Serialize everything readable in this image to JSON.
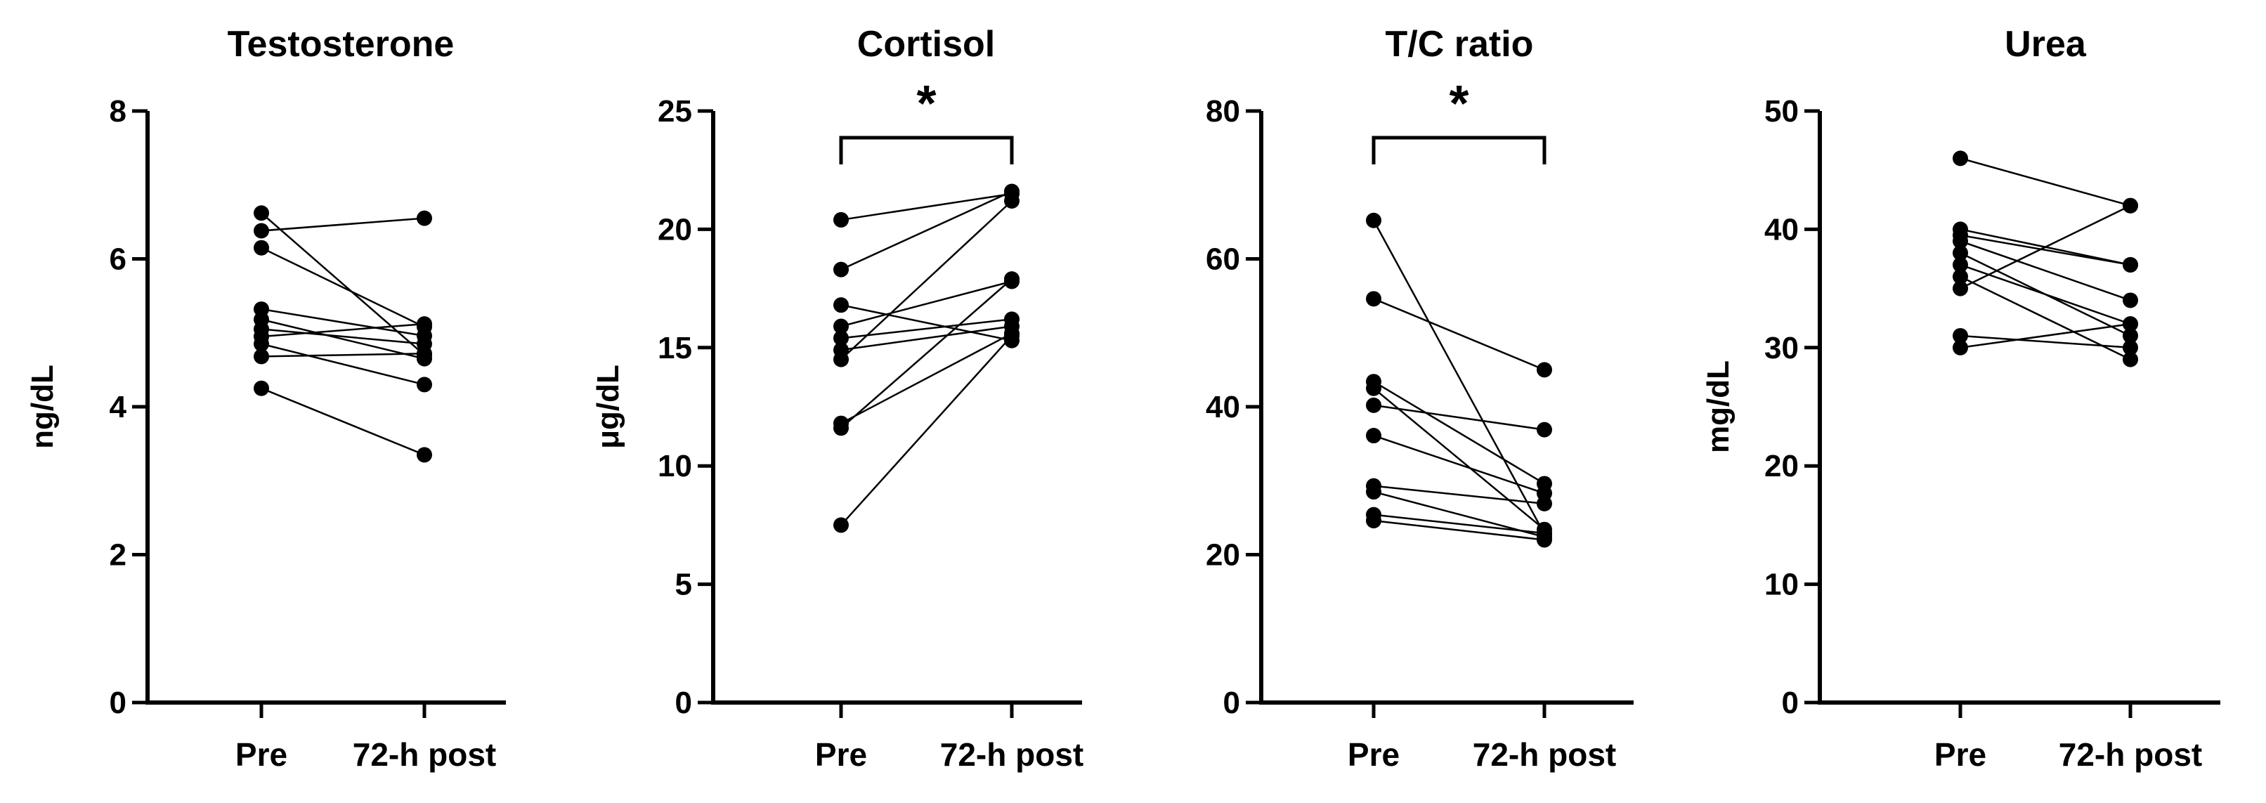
{
  "chart_data": [
    {
      "type": "line",
      "title": "Testosterone",
      "ylabel": "ng/dL",
      "categories": [
        "Pre",
        "72-h post"
      ],
      "ylim": [
        0,
        8
      ],
      "yticks": [
        0,
        2,
        4,
        6,
        8
      ],
      "significance": null,
      "pairs": [
        [
          6.62,
          4.7
        ],
        [
          6.38,
          6.55
        ],
        [
          6.15,
          5.08
        ],
        [
          5.32,
          4.96
        ],
        [
          5.18,
          4.65
        ],
        [
          5.05,
          4.85
        ],
        [
          4.95,
          5.12
        ],
        [
          4.85,
          4.3
        ],
        [
          4.68,
          4.72
        ],
        [
          4.25,
          3.35
        ]
      ]
    },
    {
      "type": "line",
      "title": "Cortisol",
      "ylabel": "μg/dL",
      "categories": [
        "Pre",
        "72-h post"
      ],
      "ylim": [
        0,
        25
      ],
      "yticks": [
        0,
        5,
        10,
        15,
        20,
        25
      ],
      "significance": "*",
      "pairs": [
        [
          20.4,
          21.5
        ],
        [
          18.3,
          21.6
        ],
        [
          16.8,
          15.3
        ],
        [
          15.9,
          17.8
        ],
        [
          15.4,
          16.2
        ],
        [
          14.9,
          15.9
        ],
        [
          14.5,
          21.2
        ],
        [
          11.8,
          15.6
        ],
        [
          11.6,
          17.9
        ],
        [
          7.5,
          15.5
        ]
      ]
    },
    {
      "type": "line",
      "title": "T/C ratio",
      "ylabel": "",
      "categories": [
        "Pre",
        "72-h post"
      ],
      "ylim": [
        0,
        80
      ],
      "yticks": [
        0,
        20,
        40,
        60,
        80
      ],
      "significance": "*",
      "pairs": [
        [
          65.2,
          22.8
        ],
        [
          54.6,
          45.0
        ],
        [
          43.4,
          29.6
        ],
        [
          42.5,
          23.4
        ],
        [
          40.2,
          36.9
        ],
        [
          36.1,
          28.3
        ],
        [
          29.3,
          26.9
        ],
        [
          28.5,
          22.4
        ],
        [
          25.4,
          22.9
        ],
        [
          24.6,
          22.0
        ]
      ]
    },
    {
      "type": "line",
      "title": "Urea",
      "ylabel": "mg/dL",
      "categories": [
        "Pre",
        "72-h post"
      ],
      "ylim": [
        0,
        50
      ],
      "yticks": [
        0,
        10,
        20,
        30,
        40,
        50
      ],
      "significance": null,
      "pairs": [
        [
          46,
          42
        ],
        [
          40,
          37
        ],
        [
          39,
          34
        ],
        [
          38,
          31
        ],
        [
          37,
          32
        ],
        [
          36,
          29
        ],
        [
          35,
          42
        ],
        [
          31,
          30
        ],
        [
          30,
          32
        ],
        [
          39.5,
          37
        ]
      ]
    }
  ]
}
